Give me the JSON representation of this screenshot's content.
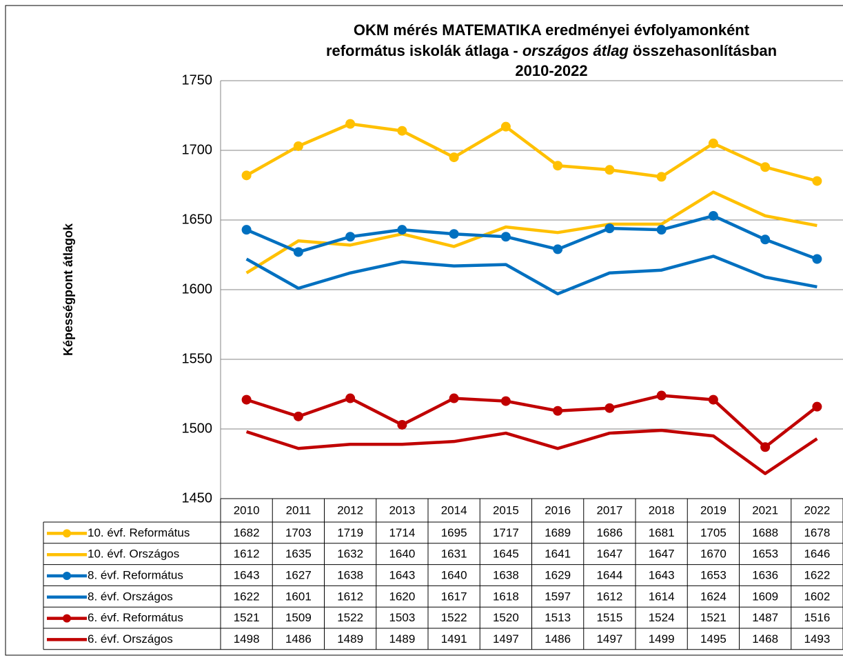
{
  "chart_data": {
    "type": "line",
    "title": [
      "OKM mérés MATEMATIKA eredményei évfolyamonként",
      [
        "református iskolák átlaga - ",
        "országos átlag",
        " összehasonlításban"
      ],
      "2010-2022"
    ],
    "y_label": "Képességpont átlagok",
    "categories": [
      "2010",
      "2011",
      "2012",
      "2013",
      "2014",
      "2015",
      "2016",
      "2017",
      "2018",
      "2019",
      "2021",
      "2022"
    ],
    "ylim": [
      1450,
      1750
    ],
    "yticks": [
      1450,
      1500,
      1550,
      1600,
      1650,
      1700,
      1750
    ],
    "grid": true,
    "series": [
      {
        "name": "10. évf. Református",
        "color": "#FFC000",
        "markers": true,
        "values": [
          1682,
          1703,
          1719,
          1714,
          1695,
          1717,
          1689,
          1686,
          1681,
          1705,
          1688,
          1678
        ]
      },
      {
        "name": "10. évf. Országos",
        "color": "#FFC000",
        "markers": false,
        "values": [
          1612,
          1635,
          1632,
          1640,
          1631,
          1645,
          1641,
          1647,
          1647,
          1670,
          1653,
          1646
        ]
      },
      {
        "name": "8. évf. Református",
        "color": "#0070C0",
        "markers": true,
        "values": [
          1643,
          1627,
          1638,
          1643,
          1640,
          1638,
          1629,
          1644,
          1643,
          1653,
          1636,
          1622
        ]
      },
      {
        "name": "8. évf. Országos",
        "color": "#0070C0",
        "markers": false,
        "values": [
          1622,
          1601,
          1612,
          1620,
          1617,
          1618,
          1597,
          1612,
          1614,
          1624,
          1609,
          1602
        ]
      },
      {
        "name": "6. évf. Református",
        "color": "#C00000",
        "markers": true,
        "values": [
          1521,
          1509,
          1522,
          1503,
          1522,
          1520,
          1513,
          1515,
          1524,
          1521,
          1487,
          1516
        ]
      },
      {
        "name": "6. évf. Országos",
        "color": "#C00000",
        "markers": false,
        "values": [
          1498,
          1486,
          1489,
          1489,
          1491,
          1497,
          1486,
          1497,
          1499,
          1495,
          1468,
          1493
        ]
      }
    ]
  }
}
